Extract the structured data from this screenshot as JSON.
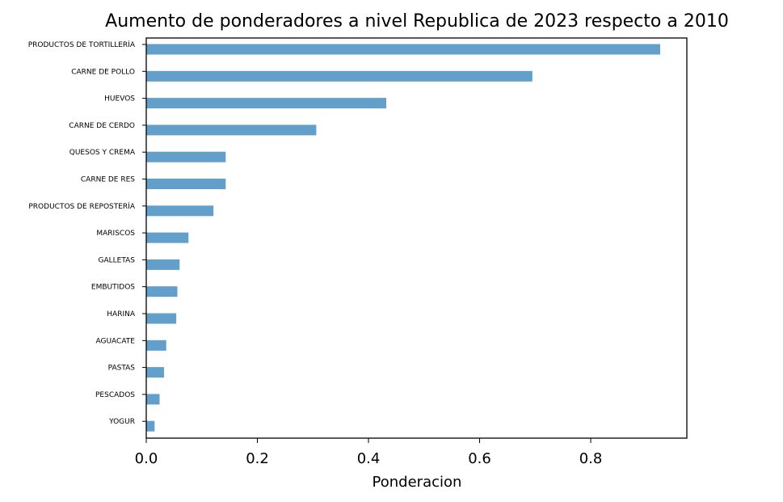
{
  "chart_data": {
    "type": "bar",
    "orientation": "horizontal",
    "title": "Aumento de ponderadores a nivel Republica de 2023 respecto a 2010",
    "xlabel": "Ponderacion",
    "ylabel": "",
    "categories": [
      "PRODUCTOS DE TORTILLERÍA",
      "CARNE DE POLLO",
      "HUEVOS",
      "CARNE DE CERDO",
      "QUESOS Y CREMA",
      "CARNE DE RES",
      "PRODUCTOS DE REPOSTERÍA",
      "MARISCOS",
      "GALLETAS",
      "EMBUTIDOS",
      "HARINA",
      "AGUACATE",
      "PASTAS",
      "PESCADOS",
      "YOGUR"
    ],
    "values": [
      0.925,
      0.695,
      0.432,
      0.306,
      0.143,
      0.143,
      0.121,
      0.076,
      0.06,
      0.056,
      0.054,
      0.036,
      0.032,
      0.024,
      0.015
    ],
    "xlim": [
      0,
      0.973
    ],
    "xticks": [
      0.0,
      0.2,
      0.4,
      0.6,
      0.8
    ],
    "xtick_labels": [
      "0.0",
      "0.2",
      "0.4",
      "0.6",
      "0.8"
    ],
    "grid": false,
    "bar_color": "#62a0cb"
  }
}
